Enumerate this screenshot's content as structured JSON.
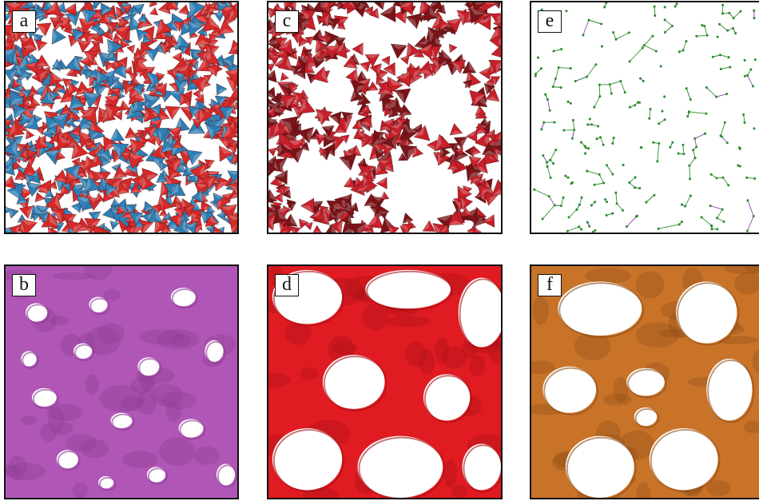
{
  "panels": [
    {
      "id": "a",
      "label": "a",
      "kind": "tetrahedra",
      "colors": [
        "#d62a2a",
        "#2f7fb5"
      ]
    },
    {
      "id": "c",
      "label": "c",
      "kind": "tetrahedra",
      "colors": [
        "#c8202a",
        "#7a1418"
      ]
    },
    {
      "id": "e",
      "label": "e",
      "kind": "network",
      "colors": [
        "#2e8b2e",
        "#8e3fb0"
      ]
    },
    {
      "id": "b",
      "label": "b",
      "kind": "surface",
      "colors": [
        "#b056b6",
        "#8c3c92"
      ]
    },
    {
      "id": "d",
      "label": "d",
      "kind": "surface",
      "colors": [
        "#e01b22",
        "#a51216"
      ]
    },
    {
      "id": "f",
      "label": "f",
      "kind": "surface",
      "colors": [
        "#c87328",
        "#8e4e18"
      ]
    }
  ]
}
